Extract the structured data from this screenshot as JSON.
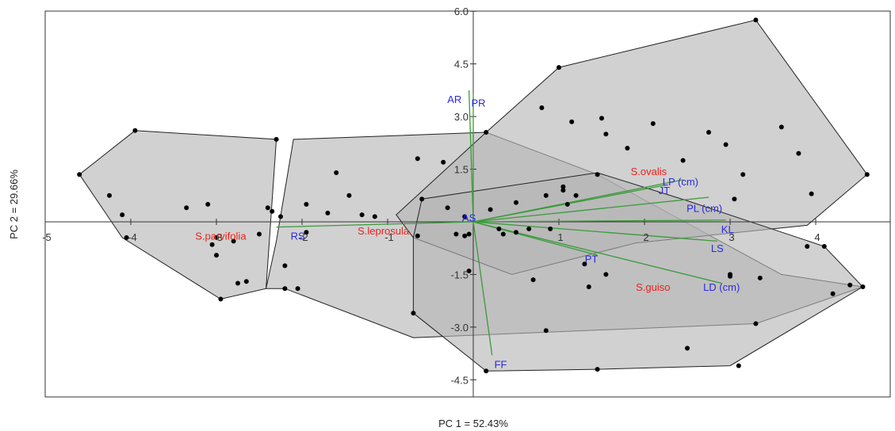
{
  "chart_data": {
    "type": "scatter",
    "subtype": "PCA biplot with convex hulls",
    "xlabel": "PC 1 = 52.43%",
    "ylabel": "PC 2 = 29.66%",
    "xlim": [
      -5,
      4.9
    ],
    "ylim": [
      -5.0,
      6.0
    ],
    "x_ticks": [
      -5,
      -4,
      -3,
      -2,
      -1,
      1,
      2,
      3,
      4
    ],
    "x_tick_labels": [
      "-5",
      "-4",
      "-3",
      "-2",
      "-1",
      "1",
      "2",
      "3",
      "4"
    ],
    "y_ticks": [
      6.0,
      4.5,
      3.0,
      1.5,
      -1.5,
      -3.0,
      -4.5
    ],
    "y_tick_labels": [
      "6.0",
      "4.5",
      "3.0",
      "1.5",
      "-1.5",
      "-3.0",
      "-4.5"
    ],
    "colors": {
      "hull_fill": "#b4b4b4",
      "hull_stroke": "#222222",
      "point": "#000000",
      "vector": "#3a9a3a",
      "group_label": "#e8231c",
      "variable_label": "#2a2ae0"
    },
    "groups": [
      {
        "name": "S.parvifolia",
        "centroid": [
          -2.95,
          -0.27
        ],
        "hull": [
          [
            -4.6,
            1.35
          ],
          [
            -3.95,
            2.6
          ],
          [
            -2.3,
            2.35
          ],
          [
            -2.42,
            -1.9
          ],
          [
            -2.95,
            -2.2
          ],
          [
            -4.1,
            -0.45
          ]
        ]
      },
      {
        "name": "S.leprosula",
        "centroid": [
          -1.05,
          -0.2
        ],
        "hull": [
          [
            -2.3,
            -0.55
          ],
          [
            -2.1,
            2.35
          ],
          [
            0.15,
            2.55
          ],
          [
            1.45,
            1.35
          ],
          [
            3.6,
            -1.5
          ],
          [
            4.55,
            -1.85
          ],
          [
            3.3,
            -2.9
          ],
          [
            -0.7,
            -3.3
          ],
          [
            -2.2,
            -1.9
          ],
          [
            -2.42,
            -1.9
          ]
        ]
      },
      {
        "name": "S.ovalis",
        "centroid": [
          2.05,
          1.55
        ],
        "hull": [
          [
            -0.9,
            0.2
          ],
          [
            0.15,
            2.55
          ],
          [
            1.0,
            4.4
          ],
          [
            3.3,
            5.75
          ],
          [
            4.6,
            1.35
          ],
          [
            3.9,
            -0.1
          ],
          [
            1.9,
            -0.6
          ],
          [
            0.45,
            -1.5
          ],
          [
            -0.7,
            -0.45
          ]
        ]
      },
      {
        "name": "S.guiso",
        "centroid": [
          2.0,
          -1.8
        ],
        "hull": [
          [
            -0.7,
            -0.45
          ],
          [
            -0.6,
            0.65
          ],
          [
            1.45,
            1.4
          ],
          [
            2.5,
            0.6
          ],
          [
            4.1,
            -0.7
          ],
          [
            4.55,
            -1.85
          ],
          [
            3.0,
            -4.1
          ],
          [
            1.45,
            -4.2
          ],
          [
            0.15,
            -4.25
          ],
          [
            -0.7,
            -2.6
          ]
        ]
      }
    ],
    "points": [
      [
        -4.6,
        1.35
      ],
      [
        -4.25,
        0.75
      ],
      [
        -4.1,
        0.2
      ],
      [
        -4.05,
        -0.45
      ],
      [
        -3.95,
        2.6
      ],
      [
        -3.35,
        0.4
      ],
      [
        -3.1,
        0.5
      ],
      [
        -3.05,
        -0.65
      ],
      [
        -3.0,
        -0.45
      ],
      [
        -3.0,
        -0.95
      ],
      [
        -2.95,
        -2.2
      ],
      [
        -2.8,
        -0.55
      ],
      [
        -2.75,
        -1.75
      ],
      [
        -2.65,
        -1.7
      ],
      [
        -2.5,
        -0.35
      ],
      [
        -2.3,
        2.35
      ],
      [
        -2.4,
        0.4
      ],
      [
        -2.35,
        0.3
      ],
      [
        -2.25,
        0.15
      ],
      [
        -2.2,
        -1.25
      ],
      [
        -2.2,
        -1.9
      ],
      [
        -1.95,
        0.5
      ],
      [
        -1.95,
        -0.3
      ],
      [
        -2.05,
        -1.9
      ],
      [
        -1.7,
        0.25
      ],
      [
        -1.6,
        1.4
      ],
      [
        -1.45,
        0.75
      ],
      [
        -1.3,
        0.2
      ],
      [
        -1.15,
        0.15
      ],
      [
        -0.65,
        1.8
      ],
      [
        -0.65,
        -0.4
      ],
      [
        -0.7,
        -2.6
      ],
      [
        -0.6,
        0.65
      ],
      [
        -0.35,
        1.7
      ],
      [
        -0.3,
        0.4
      ],
      [
        -0.2,
        -0.35
      ],
      [
        -0.1,
        -0.4
      ],
      [
        -0.1,
        0.15
      ],
      [
        -0.05,
        -0.35
      ],
      [
        -0.05,
        -1.4
      ],
      [
        0.15,
        2.55
      ],
      [
        0.15,
        -4.25
      ],
      [
        0.2,
        0.35
      ],
      [
        0.3,
        -0.2
      ],
      [
        0.35,
        -0.35
      ],
      [
        0.5,
        -0.3
      ],
      [
        0.5,
        0.55
      ],
      [
        0.65,
        -0.2
      ],
      [
        0.7,
        -1.65
      ],
      [
        0.8,
        3.25
      ],
      [
        0.85,
        -3.1
      ],
      [
        0.85,
        0.75
      ],
      [
        0.9,
        -0.2
      ],
      [
        1.0,
        4.4
      ],
      [
        1.05,
        1.0
      ],
      [
        1.05,
        0.9
      ],
      [
        1.1,
        0.5
      ],
      [
        1.15,
        2.85
      ],
      [
        1.2,
        0.75
      ],
      [
        1.3,
        -1.2
      ],
      [
        1.35,
        -1.85
      ],
      [
        1.45,
        1.35
      ],
      [
        1.45,
        -4.2
      ],
      [
        1.5,
        2.95
      ],
      [
        1.55,
        2.5
      ],
      [
        1.55,
        -1.5
      ],
      [
        1.8,
        2.1
      ],
      [
        2.1,
        2.8
      ],
      [
        2.45,
        1.75
      ],
      [
        2.5,
        -3.6
      ],
      [
        2.75,
        2.55
      ],
      [
        2.95,
        2.2
      ],
      [
        3.0,
        -1.55
      ],
      [
        3.05,
        0.65
      ],
      [
        3.0,
        -1.5
      ],
      [
        3.15,
        1.35
      ],
      [
        3.1,
        -4.1
      ],
      [
        3.35,
        -1.6
      ],
      [
        3.6,
        2.7
      ],
      [
        3.3,
        5.75
      ],
      [
        3.8,
        1.95
      ],
      [
        3.9,
        -0.7
      ],
      [
        3.95,
        0.8
      ],
      [
        4.1,
        -0.7
      ],
      [
        4.2,
        -2.05
      ],
      [
        4.4,
        -1.8
      ],
      [
        4.55,
        -1.85
      ],
      [
        4.6,
        1.35
      ],
      [
        3.3,
        -2.9
      ]
    ],
    "vectors": [
      {
        "name": "AR",
        "end": [
          -0.05,
          3.75
        ]
      },
      {
        "name": "PR",
        "end": [
          0.0,
          3.65
        ]
      },
      {
        "name": "JT",
        "end": [
          2.25,
          1.05
        ]
      },
      {
        "name": "LP (cm)",
        "end": [
          2.45,
          1.2
        ]
      },
      {
        "name": "PL (cm)",
        "end": [
          2.75,
          0.7
        ]
      },
      {
        "name": "KL",
        "end": [
          2.95,
          0.05
        ]
      },
      {
        "name": "LS",
        "end": [
          2.85,
          -0.55
        ]
      },
      {
        "name": "LD (cm)",
        "end": [
          2.9,
          -1.75
        ]
      },
      {
        "name": "PT",
        "end": [
          1.45,
          -0.95
        ]
      },
      {
        "name": "FF",
        "end": [
          0.22,
          -3.8
        ]
      },
      {
        "name": "AS",
        "end": [
          -0.05,
          0.05
        ]
      },
      {
        "name": "RS",
        "end": [
          -2.3,
          -0.15
        ]
      }
    ],
    "variable_labels": [
      {
        "text": "AR",
        "pos": [
          -0.22,
          3.5
        ]
      },
      {
        "text": "PR",
        "pos": [
          0.06,
          3.4
        ]
      },
      {
        "text": "LP (cm)",
        "pos": [
          2.42,
          1.15
        ]
      },
      {
        "text": "JT",
        "pos": [
          2.23,
          0.9
        ]
      },
      {
        "text": "PL (cm)",
        "pos": [
          2.7,
          0.4
        ]
      },
      {
        "text": "KL",
        "pos": [
          2.97,
          -0.2
        ]
      },
      {
        "text": "LS",
        "pos": [
          2.85,
          -0.75
        ]
      },
      {
        "text": "LD (cm)",
        "pos": [
          2.9,
          -1.85
        ]
      },
      {
        "text": "PT",
        "pos": [
          1.38,
          -1.05
        ]
      },
      {
        "text": "AS",
        "pos": [
          -0.05,
          0.12
        ]
      },
      {
        "text": "RS",
        "pos": [
          -2.05,
          -0.4
        ]
      },
      {
        "text": "FF",
        "pos": [
          0.32,
          -4.05
        ]
      }
    ],
    "group_labels": [
      {
        "text": "S.ovalis",
        "pos": [
          2.05,
          1.45
        ]
      },
      {
        "text": "S.guiso",
        "pos": [
          2.1,
          -1.85
        ]
      },
      {
        "text": "S.parvifolia",
        "pos": [
          -2.95,
          -0.4
        ]
      },
      {
        "text": "S.leprosula",
        "pos": [
          -1.05,
          -0.25
        ]
      }
    ]
  }
}
